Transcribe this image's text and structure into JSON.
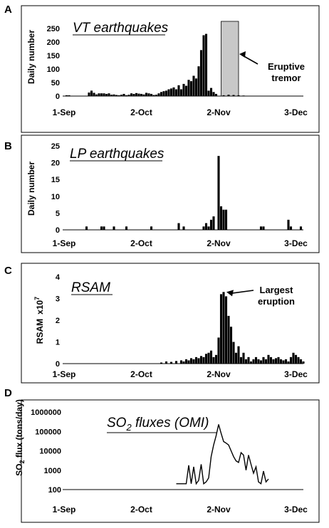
{
  "panel_letters": [
    "A",
    "B",
    "C",
    "D"
  ],
  "x_tick_labels": [
    "1-Sep",
    "2-Oct",
    "2-Nov",
    "3-Dec"
  ],
  "chart_data": [
    {
      "type": "bar",
      "panel": "A",
      "title": "VT earthquakes",
      "ylabel": "Daily number",
      "ylim": [
        0,
        250
      ],
      "yticks": [
        "0",
        "50",
        "100",
        "150",
        "200",
        "250"
      ],
      "x_start": "2004-09-01",
      "x_end": "2004-12-06",
      "bars": [
        [
          "2004-09-02",
          3
        ],
        [
          "2004-09-03",
          3
        ],
        [
          "2004-09-11",
          13
        ],
        [
          "2004-09-12",
          20
        ],
        [
          "2004-09-13",
          12
        ],
        [
          "2004-09-14",
          6
        ],
        [
          "2004-09-15",
          10
        ],
        [
          "2004-09-16",
          10
        ],
        [
          "2004-09-17",
          10
        ],
        [
          "2004-09-18",
          8
        ],
        [
          "2004-09-19",
          10
        ],
        [
          "2004-09-20",
          5
        ],
        [
          "2004-09-21",
          6
        ],
        [
          "2004-09-22",
          4
        ],
        [
          "2004-09-23",
          3
        ],
        [
          "2004-09-24",
          5
        ],
        [
          "2004-09-25",
          8
        ],
        [
          "2004-09-26",
          3
        ],
        [
          "2004-09-27",
          5
        ],
        [
          "2004-09-28",
          10
        ],
        [
          "2004-09-29",
          8
        ],
        [
          "2004-09-30",
          11
        ],
        [
          "2004-10-01",
          9
        ],
        [
          "2004-10-02",
          8
        ],
        [
          "2004-10-03",
          6
        ],
        [
          "2004-10-04",
          12
        ],
        [
          "2004-10-05",
          10
        ],
        [
          "2004-10-06",
          8
        ],
        [
          "2004-10-07",
          4
        ],
        [
          "2004-10-08",
          5
        ],
        [
          "2004-10-09",
          10
        ],
        [
          "2004-10-10",
          15
        ],
        [
          "2004-10-11",
          18
        ],
        [
          "2004-10-12",
          20
        ],
        [
          "2004-10-13",
          25
        ],
        [
          "2004-10-14",
          28
        ],
        [
          "2004-10-15",
          32
        ],
        [
          "2004-10-16",
          25
        ],
        [
          "2004-10-17",
          40
        ],
        [
          "2004-10-18",
          25
        ],
        [
          "2004-10-19",
          45
        ],
        [
          "2004-10-20",
          38
        ],
        [
          "2004-10-21",
          60
        ],
        [
          "2004-10-22",
          55
        ],
        [
          "2004-10-23",
          75
        ],
        [
          "2004-10-24",
          65
        ],
        [
          "2004-10-25",
          110
        ],
        [
          "2004-10-26",
          170
        ],
        [
          "2004-10-27",
          225
        ],
        [
          "2004-10-28",
          230
        ],
        [
          "2004-10-29",
          20
        ],
        [
          "2004-10-30",
          30
        ],
        [
          "2004-10-31",
          15
        ],
        [
          "2004-11-01",
          8
        ],
        [
          "2004-11-04",
          3
        ],
        [
          "2004-11-06",
          5
        ],
        [
          "2004-11-08",
          4
        ],
        [
          "2004-11-10",
          3
        ],
        [
          "2004-11-12",
          2
        ]
      ],
      "shaded_band": {
        "from": "2004-11-03",
        "to": "2004-11-10",
        "label": "Eruptive tremor"
      }
    },
    {
      "type": "bar",
      "panel": "B",
      "title": "LP earthquakes",
      "ylabel": "Daily number",
      "ylim": [
        0,
        25
      ],
      "yticks": [
        "0",
        "5",
        "10",
        "15",
        "20",
        "25"
      ],
      "x_start": "2004-09-01",
      "x_end": "2004-12-06",
      "bars": [
        [
          "2004-09-10",
          1
        ],
        [
          "2004-09-16",
          1
        ],
        [
          "2004-09-17",
          1
        ],
        [
          "2004-09-21",
          1
        ],
        [
          "2004-09-26",
          1
        ],
        [
          "2004-10-06",
          1
        ],
        [
          "2004-10-17",
          2
        ],
        [
          "2004-10-19",
          1
        ],
        [
          "2004-10-27",
          1
        ],
        [
          "2004-10-28",
          2
        ],
        [
          "2004-10-29",
          1
        ],
        [
          "2004-10-30",
          3
        ],
        [
          "2004-10-31",
          4
        ],
        [
          "2004-11-02",
          22
        ],
        [
          "2004-11-03",
          7
        ],
        [
          "2004-11-04",
          6
        ],
        [
          "2004-11-05",
          6
        ],
        [
          "2004-11-19",
          1
        ],
        [
          "2004-11-20",
          1
        ],
        [
          "2004-11-30",
          3
        ],
        [
          "2004-12-01",
          1
        ],
        [
          "2004-12-05",
          1
        ]
      ]
    },
    {
      "type": "bar",
      "panel": "C",
      "title": "RSAM",
      "ylabel": "RSAM",
      "ylabel_multiplier": "x10",
      "ylabel_exponent": "7",
      "ylim": [
        0,
        4
      ],
      "yticks": [
        "0",
        "1",
        "2",
        "3",
        "4"
      ],
      "x_start": "2004-09-01",
      "x_end": "2004-12-06",
      "bars": [
        [
          "2004-10-10",
          0.05
        ],
        [
          "2004-10-12",
          0.1
        ],
        [
          "2004-10-14",
          0.08
        ],
        [
          "2004-10-16",
          0.12
        ],
        [
          "2004-10-18",
          0.15
        ],
        [
          "2004-10-19",
          0.1
        ],
        [
          "2004-10-20",
          0.2
        ],
        [
          "2004-10-21",
          0.15
        ],
        [
          "2004-10-22",
          0.25
        ],
        [
          "2004-10-23",
          0.2
        ],
        [
          "2004-10-24",
          0.3
        ],
        [
          "2004-10-25",
          0.25
        ],
        [
          "2004-10-26",
          0.35
        ],
        [
          "2004-10-27",
          0.3
        ],
        [
          "2004-10-28",
          0.45
        ],
        [
          "2004-10-29",
          0.5
        ],
        [
          "2004-10-30",
          0.6
        ],
        [
          "2004-10-31",
          0.3
        ],
        [
          "2004-11-01",
          0.4
        ],
        [
          "2004-11-02",
          1.2
        ],
        [
          "2004-11-03",
          3.2
        ],
        [
          "2004-11-04",
          3.3
        ],
        [
          "2004-11-05",
          3.1
        ],
        [
          "2004-11-06",
          2.2
        ],
        [
          "2004-11-07",
          1.7
        ],
        [
          "2004-11-08",
          1.0
        ],
        [
          "2004-11-09",
          0.5
        ],
        [
          "2004-11-10",
          0.8
        ],
        [
          "2004-11-11",
          0.3
        ],
        [
          "2004-11-12",
          0.5
        ],
        [
          "2004-11-13",
          0.2
        ],
        [
          "2004-11-14",
          0.3
        ],
        [
          "2004-11-15",
          0.1
        ],
        [
          "2004-11-16",
          0.2
        ],
        [
          "2004-11-17",
          0.3
        ],
        [
          "2004-11-18",
          0.2
        ],
        [
          "2004-11-19",
          0.15
        ],
        [
          "2004-11-20",
          0.3
        ],
        [
          "2004-11-21",
          0.2
        ],
        [
          "2004-11-22",
          0.4
        ],
        [
          "2004-11-23",
          0.3
        ],
        [
          "2004-11-24",
          0.2
        ],
        [
          "2004-11-25",
          0.25
        ],
        [
          "2004-11-26",
          0.3
        ],
        [
          "2004-11-27",
          0.2
        ],
        [
          "2004-11-28",
          0.15
        ],
        [
          "2004-11-29",
          0.2
        ],
        [
          "2004-11-30",
          0.1
        ],
        [
          "2004-12-01",
          0.3
        ],
        [
          "2004-12-02",
          0.5
        ],
        [
          "2004-12-03",
          0.4
        ],
        [
          "2004-12-04",
          0.3
        ],
        [
          "2004-12-05",
          0.2
        ],
        [
          "2004-12-06",
          0.1
        ]
      ],
      "annotation": {
        "label_line1": "Largest",
        "label_line2": "eruption",
        "date": "2004-11-04"
      }
    },
    {
      "type": "line",
      "panel": "D",
      "title_main": "SO",
      "title_sub": "2",
      "title_rest": " fluxes (OMI)",
      "ylabel": "SO",
      "ylabel_sub": "2",
      "ylabel_rest": " flux (tons/day)",
      "yscale": "log",
      "ylim": [
        100,
        1000000
      ],
      "yticks": [
        "100",
        "1000",
        "10000",
        "100000",
        "1000000"
      ],
      "x_start": "2004-09-01",
      "x_end": "2004-12-06",
      "points": [
        [
          "2004-10-16",
          200
        ],
        [
          "2004-10-20",
          200
        ],
        [
          "2004-10-21",
          1800
        ],
        [
          "2004-10-22",
          200
        ],
        [
          "2004-10-23",
          1500
        ],
        [
          "2004-10-24",
          200
        ],
        [
          "2004-10-25",
          300
        ],
        [
          "2004-10-26",
          2000
        ],
        [
          "2004-10-27",
          200
        ],
        [
          "2004-10-28",
          250
        ],
        [
          "2004-10-29",
          400
        ],
        [
          "2004-10-30",
          5000
        ],
        [
          "2004-10-31",
          20000
        ],
        [
          "2004-11-01",
          60000
        ],
        [
          "2004-11-02",
          230000
        ],
        [
          "2004-11-03",
          80000
        ],
        [
          "2004-11-04",
          30000
        ],
        [
          "2004-11-05",
          25000
        ],
        [
          "2004-11-06",
          20000
        ],
        [
          "2004-11-07",
          10000
        ],
        [
          "2004-11-08",
          5000
        ],
        [
          "2004-11-09",
          3000
        ],
        [
          "2004-11-10",
          2500
        ],
        [
          "2004-11-11",
          8000
        ],
        [
          "2004-11-12",
          6000
        ],
        [
          "2004-11-13",
          1000
        ],
        [
          "2004-11-14",
          6000
        ],
        [
          "2004-11-15",
          2000
        ],
        [
          "2004-11-16",
          700
        ],
        [
          "2004-11-17",
          1500
        ],
        [
          "2004-11-18",
          250
        ],
        [
          "2004-11-19",
          200
        ],
        [
          "2004-11-20",
          900
        ],
        [
          "2004-11-21",
          250
        ],
        [
          "2004-11-22",
          350
        ]
      ]
    }
  ]
}
